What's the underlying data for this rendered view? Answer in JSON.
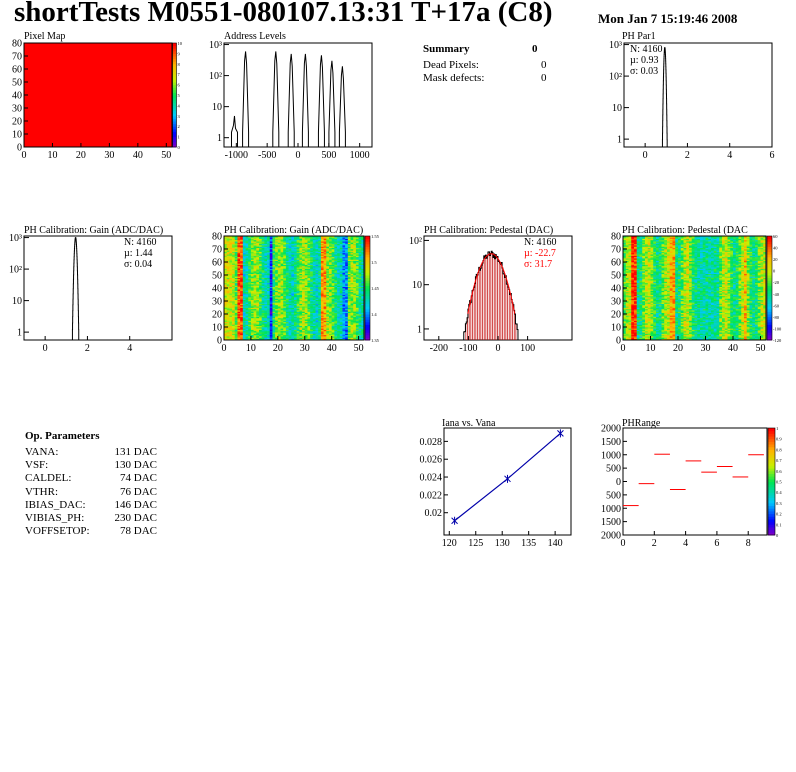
{
  "header": {
    "title": "shortTests M0551-080107.13:31 T+17a (C8)",
    "date": "Mon Jan  7 15:19:46 2008"
  },
  "summary": {
    "title": "Summary",
    "value": "0",
    "rows": [
      {
        "label": "Dead Pixels:",
        "value": "0"
      },
      {
        "label": "Mask defects:",
        "value": "0"
      }
    ]
  },
  "op_params": {
    "title": "Op. Parameters",
    "rows": [
      {
        "name": "VANA:",
        "value": "131 DAC"
      },
      {
        "name": "VSF:",
        "value": "130 DAC"
      },
      {
        "name": "CALDEL:",
        "value": "74 DAC"
      },
      {
        "name": "VTHR:",
        "value": "76 DAC"
      },
      {
        "name": "IBIAS_DAC:",
        "value": "146 DAC"
      },
      {
        "name": "VIBIAS_PH:",
        "value": "230 DAC"
      },
      {
        "name": "VOFFSETOP:",
        "value": "78 DAC"
      }
    ]
  },
  "chart_data": [
    {
      "id": "pixel-map",
      "type": "heatmap",
      "title": "Pixel Map",
      "xlim": [
        0,
        52
      ],
      "ylim": [
        0,
        80
      ],
      "x_ticks": [
        "0",
        "10",
        "20",
        "30",
        "40",
        "50"
      ],
      "y_ticks": [
        "0",
        "10",
        "20",
        "30",
        "40",
        "50",
        "60",
        "70",
        "80"
      ],
      "fill_color": "#ff0000",
      "palette_ticks": [
        "0",
        "1",
        "2",
        "3",
        "4",
        "5",
        "6",
        "7",
        "8",
        "9",
        "10"
      ]
    },
    {
      "id": "address-levels",
      "type": "bar",
      "title": "Address Levels",
      "xlim": [
        -1200,
        1200
      ],
      "y_scale": "log",
      "x_ticks": [
        "-1000",
        "-500",
        "0",
        "500",
        "1000"
      ],
      "y_ticks": [
        "1",
        "10",
        "10²",
        "10³"
      ],
      "peaks": [
        {
          "x": -1030,
          "y": 5
        },
        {
          "x": -850,
          "y": 600
        },
        {
          "x": -360,
          "y": 600
        },
        {
          "x": -110,
          "y": 500
        },
        {
          "x": 120,
          "y": 500
        },
        {
          "x": 380,
          "y": 450
        },
        {
          "x": 550,
          "y": 300
        },
        {
          "x": 720,
          "y": 200
        }
      ]
    },
    {
      "id": "ph-par1",
      "type": "bar",
      "title": "PH Par1",
      "xlim": [
        -1,
        6
      ],
      "y_scale": "log",
      "x_ticks": [
        "0",
        "2",
        "4",
        "6"
      ],
      "y_ticks": [
        "1",
        "10",
        "10²",
        "10³"
      ],
      "stats": {
        "n": "N: 4160",
        "mu": "µ: 0.93",
        "sigma": "σ: 0.03"
      },
      "distribution": {
        "mean": 0.93,
        "sigma": 0.03,
        "peak": 800
      }
    },
    {
      "id": "gain-1d",
      "type": "bar",
      "title": "PH Calibration: Gain (ADC/DAC)",
      "xlim": [
        -1,
        6
      ],
      "y_scale": "log",
      "x_ticks": [
        "0",
        "2",
        "4"
      ],
      "y_ticks": [
        "1",
        "10",
        "10²",
        "10³"
      ],
      "stats": {
        "n": "N: 4160",
        "mu": "µ: 1.44",
        "sigma": "σ: 0.04"
      },
      "distribution": {
        "mean": 1.44,
        "sigma": 0.04,
        "peak": 1000
      }
    },
    {
      "id": "gain-2d",
      "type": "heatmap",
      "title": "PH Calibration: Gain (ADC/DAC)",
      "xlim": [
        0,
        52
      ],
      "ylim": [
        0,
        80
      ],
      "x_ticks": [
        "0",
        "10",
        "20",
        "30",
        "40",
        "50"
      ],
      "y_ticks": [
        "0",
        "10",
        "20",
        "30",
        "40",
        "50",
        "60",
        "70",
        "80"
      ],
      "palette_ticks": [
        "1.35",
        "1.4",
        "1.45",
        "1.5",
        "1.55"
      ]
    },
    {
      "id": "pedestal-1d",
      "type": "bar",
      "title": "PH Calibration: Pedestal (DAC)",
      "xlim": [
        -250,
        250
      ],
      "y_scale": "log",
      "x_ticks": [
        "-200",
        "-100",
        "0",
        "100"
      ],
      "y_ticks": [
        "1",
        "10",
        "10²"
      ],
      "stats": {
        "n": "N: 4160",
        "mu": "µ: -22.7",
        "sigma": "σ: 31.7"
      },
      "distribution": {
        "mean": -22.7,
        "sigma": 31.7,
        "peak": 50
      }
    },
    {
      "id": "pedestal-2d",
      "type": "heatmap",
      "title": "PH Calibration: Pedestal (DAC",
      "xlim": [
        0,
        52
      ],
      "ylim": [
        0,
        80
      ],
      "x_ticks": [
        "0",
        "10",
        "20",
        "30",
        "40",
        "50"
      ],
      "y_ticks": [
        "0",
        "10",
        "20",
        "30",
        "40",
        "50",
        "60",
        "70",
        "80"
      ],
      "palette_ticks": [
        "-120",
        "-100",
        "-80",
        "-60",
        "-40",
        "-20",
        "0",
        "20",
        "40",
        "60"
      ]
    },
    {
      "id": "iana-vana",
      "type": "line",
      "title": "Iana vs. Vana",
      "xlim": [
        119,
        143
      ],
      "ylim": [
        0.0175,
        0.0295
      ],
      "x_ticks": [
        "120",
        "125",
        "130",
        "135",
        "140"
      ],
      "y_ticks": [
        "0.02",
        "0.022",
        "0.024",
        "0.026",
        "0.028"
      ],
      "x": [
        121,
        131,
        141
      ],
      "y": [
        0.0191,
        0.0238,
        0.0289
      ]
    },
    {
      "id": "ph-range",
      "type": "scatter",
      "title": "PHRange",
      "xlim": [
        0,
        9.2
      ],
      "ylim": [
        -2000,
        2000
      ],
      "x_ticks": [
        "0",
        "2",
        "4",
        "6",
        "8"
      ],
      "y_ticks": [
        "2000",
        "1500",
        "1000",
        "500",
        "0",
        "500",
        "1000",
        "1500",
        "2000"
      ],
      "x": [
        0.5,
        1.5,
        2.5,
        3.5,
        4.5,
        5.5,
        6.5,
        7.5,
        8.5
      ],
      "y": [
        -900,
        -80,
        1020,
        -300,
        770,
        350,
        560,
        170,
        1000
      ],
      "palette_ticks": [
        "0",
        "0.1",
        "0.2",
        "0.3",
        "0.4",
        "0.5",
        "0.6",
        "0.7",
        "0.8",
        "0.9",
        "1"
      ]
    }
  ]
}
